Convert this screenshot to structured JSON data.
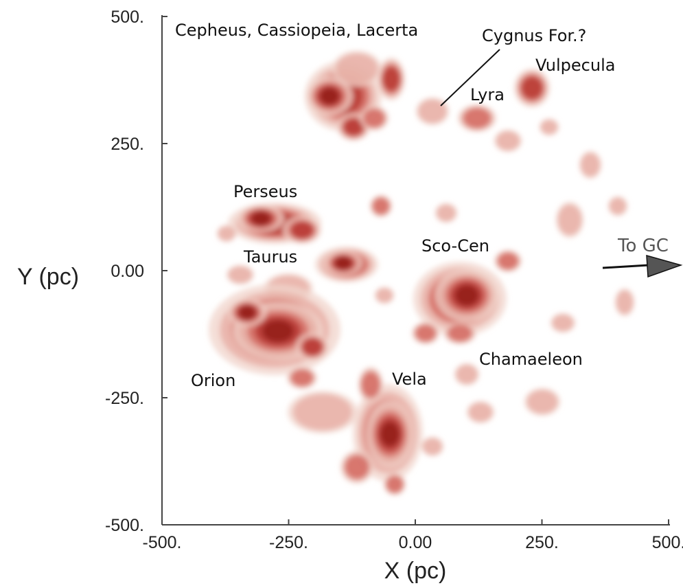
{
  "chart_data": {
    "type": "density-map",
    "xlabel": "X (pc)",
    "ylabel": "Y (pc)",
    "xlim": [
      -500,
      500
    ],
    "ylim": [
      -500,
      500
    ],
    "xticks": [
      {
        "value": -500,
        "label": "-500."
      },
      {
        "value": -250,
        "label": "-250."
      },
      {
        "value": 0,
        "label": "0.00"
      },
      {
        "value": 250,
        "label": "250."
      },
      {
        "value": 500,
        "label": "500."
      }
    ],
    "yticks": [
      {
        "value": -500,
        "label": "-500."
      },
      {
        "value": -250,
        "label": "-250."
      },
      {
        "value": 0,
        "label": "0.00"
      },
      {
        "value": 250,
        "label": "250."
      },
      {
        "value": 500,
        "label": "500."
      }
    ],
    "annotations": [
      "Cepheus, Cassiopeia, Lacerta",
      "Cygnus For.?",
      "Vulpecula",
      "Lyra",
      "Perseus",
      "Taurus",
      "Sco-Cen",
      "To GC",
      "Chamaeleon",
      "Orion",
      "Vela"
    ]
  }
}
